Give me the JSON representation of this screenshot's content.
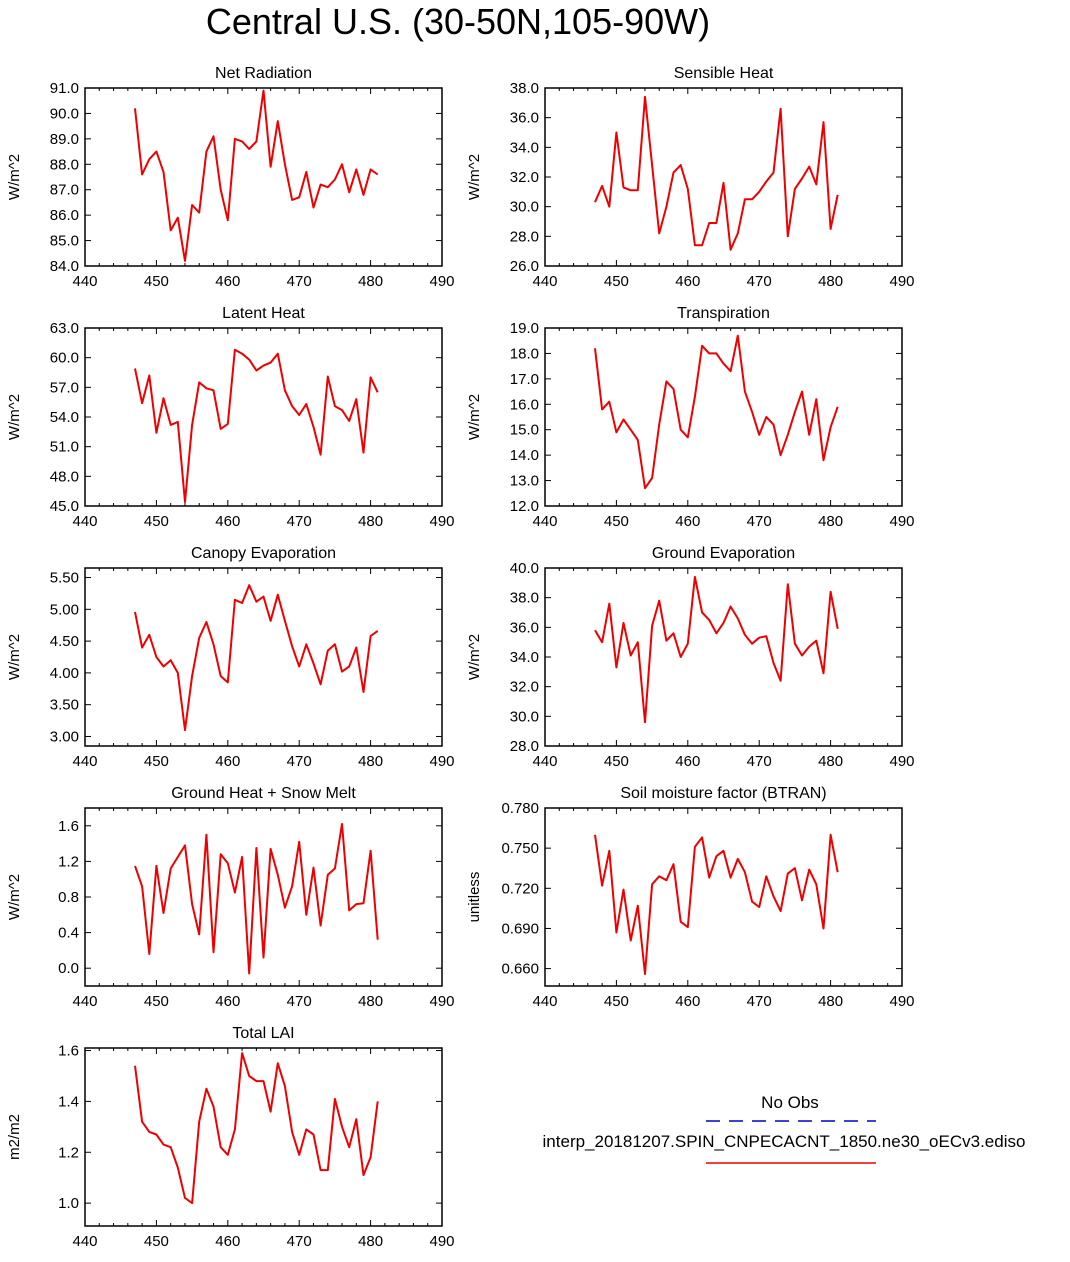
{
  "title": "Central U.S. (30-50N,105-90W)",
  "legend": {
    "obs_label": "No Obs",
    "obs_color": "#0000cc",
    "model_label": "interp_20181207.SPIN_CNPECACNT_1850.ne30_oECv3.ediso",
    "model_color": "#ee0000"
  },
  "chart_data": [
    {
      "type": "line",
      "title": "Net Radiation",
      "ylabel": "W/m^2",
      "xlim": [
        440,
        490
      ],
      "ylim": [
        84,
        91
      ],
      "xticks": [
        440,
        450,
        460,
        470,
        480,
        490
      ],
      "yticks": [
        "84.0",
        "85.0",
        "86.0",
        "87.0",
        "88.0",
        "89.0",
        "90.0",
        "91.0"
      ],
      "x": [
        447,
        448,
        449,
        450,
        451,
        452,
        453,
        454,
        455,
        456,
        457,
        458,
        459,
        460,
        461,
        462,
        463,
        464,
        465,
        466,
        467,
        468,
        469,
        470,
        471,
        472,
        473,
        474,
        475,
        476,
        477,
        478,
        479,
        480,
        481
      ],
      "values": [
        90.2,
        87.6,
        88.2,
        88.5,
        87.7,
        85.4,
        85.9,
        84.2,
        86.4,
        86.1,
        88.5,
        89.1,
        87.0,
        85.8,
        89.0,
        88.9,
        88.6,
        88.9,
        90.9,
        87.9,
        89.7,
        88.0,
        86.6,
        86.7,
        87.7,
        86.3,
        87.2,
        87.1,
        87.4,
        88.0,
        86.9,
        87.8,
        86.8,
        87.8,
        87.6
      ]
    },
    {
      "type": "line",
      "title": "Sensible Heat",
      "ylabel": "W/m^2",
      "xlim": [
        440,
        490
      ],
      "ylim": [
        26,
        38
      ],
      "xticks": [
        440,
        450,
        460,
        470,
        480,
        490
      ],
      "yticks": [
        "26.0",
        "28.0",
        "30.0",
        "32.0",
        "34.0",
        "36.0",
        "38.0"
      ],
      "x": [
        447,
        448,
        449,
        450,
        451,
        452,
        453,
        454,
        455,
        456,
        457,
        458,
        459,
        460,
        461,
        462,
        463,
        464,
        465,
        466,
        467,
        468,
        469,
        470,
        471,
        472,
        473,
        474,
        475,
        476,
        477,
        478,
        479,
        480,
        481
      ],
      "values": [
        30.3,
        31.4,
        30.0,
        35.0,
        31.3,
        31.1,
        31.1,
        37.4,
        32.8,
        28.2,
        30.0,
        32.3,
        32.8,
        31.2,
        27.4,
        27.4,
        28.9,
        28.9,
        31.6,
        27.1,
        28.2,
        30.5,
        30.5,
        31.0,
        31.7,
        32.3,
        36.6,
        28.0,
        31.2,
        31.9,
        32.7,
        31.5,
        35.7,
        28.5,
        30.8
      ]
    },
    {
      "type": "line",
      "title": "Latent Heat",
      "ylabel": "W/m^2",
      "xlim": [
        440,
        490
      ],
      "ylim": [
        45,
        63
      ],
      "xticks": [
        440,
        450,
        460,
        470,
        480,
        490
      ],
      "yticks": [
        "45.0",
        "48.0",
        "51.0",
        "54.0",
        "57.0",
        "60.0",
        "63.0"
      ],
      "x": [
        447,
        448,
        449,
        450,
        451,
        452,
        453,
        454,
        455,
        456,
        457,
        458,
        459,
        460,
        461,
        462,
        463,
        464,
        465,
        466,
        467,
        468,
        469,
        470,
        471,
        472,
        473,
        474,
        475,
        476,
        477,
        478,
        479,
        480,
        481
      ],
      "values": [
        58.9,
        55.4,
        58.2,
        52.4,
        55.9,
        53.2,
        53.5,
        45.4,
        53.2,
        57.5,
        56.9,
        56.7,
        52.8,
        53.3,
        60.8,
        60.4,
        59.8,
        58.7,
        59.2,
        59.5,
        60.4,
        56.7,
        55.1,
        54.2,
        55.3,
        53.0,
        50.2,
        58.1,
        55.1,
        54.7,
        53.6,
        55.8,
        50.4,
        58.0,
        56.5
      ]
    },
    {
      "type": "line",
      "title": "Transpiration",
      "ylabel": "W/m^2",
      "xlim": [
        440,
        490
      ],
      "ylim": [
        12,
        19
      ],
      "xticks": [
        440,
        450,
        460,
        470,
        480,
        490
      ],
      "yticks": [
        "12.0",
        "13.0",
        "14.0",
        "15.0",
        "16.0",
        "17.0",
        "18.0",
        "19.0"
      ],
      "x": [
        447,
        448,
        449,
        450,
        451,
        452,
        453,
        454,
        455,
        456,
        457,
        458,
        459,
        460,
        461,
        462,
        463,
        464,
        465,
        466,
        467,
        468,
        469,
        470,
        471,
        472,
        473,
        474,
        475,
        476,
        477,
        478,
        479,
        480,
        481
      ],
      "values": [
        18.2,
        15.8,
        16.1,
        14.9,
        15.4,
        15.0,
        14.6,
        12.7,
        13.1,
        15.2,
        16.9,
        16.6,
        15.0,
        14.7,
        16.3,
        18.3,
        18.0,
        18.0,
        17.6,
        17.3,
        18.7,
        16.5,
        15.7,
        14.8,
        15.5,
        15.2,
        14.0,
        14.8,
        15.7,
        16.5,
        14.8,
        16.2,
        13.8,
        15.1,
        15.9
      ]
    },
    {
      "type": "line",
      "title": "Canopy Evaporation",
      "ylabel": "W/m^2",
      "xlim": [
        440,
        490
      ],
      "ylim": [
        2.85,
        5.65
      ],
      "xticks": [
        440,
        450,
        460,
        470,
        480,
        490
      ],
      "yticks": [
        "3.00",
        "3.50",
        "4.00",
        "4.50",
        "5.00",
        "5.50"
      ],
      "x": [
        447,
        448,
        449,
        450,
        451,
        452,
        453,
        454,
        455,
        456,
        457,
        458,
        459,
        460,
        461,
        462,
        463,
        464,
        465,
        466,
        467,
        468,
        469,
        470,
        471,
        472,
        473,
        474,
        475,
        476,
        477,
        478,
        479,
        480,
        481
      ],
      "values": [
        4.96,
        4.4,
        4.6,
        4.25,
        4.1,
        4.2,
        4.0,
        3.1,
        3.95,
        4.55,
        4.8,
        4.45,
        3.95,
        3.85,
        5.15,
        5.1,
        5.38,
        5.12,
        5.2,
        4.82,
        5.23,
        4.82,
        4.42,
        4.1,
        4.45,
        4.15,
        3.82,
        4.35,
        4.45,
        4.02,
        4.1,
        4.4,
        3.7,
        4.58,
        4.66
      ]
    },
    {
      "type": "line",
      "title": "Ground Evaporation",
      "ylabel": "W/m^2",
      "xlim": [
        440,
        490
      ],
      "ylim": [
        28,
        40
      ],
      "xticks": [
        440,
        450,
        460,
        470,
        480,
        490
      ],
      "yticks": [
        "28.0",
        "30.0",
        "32.0",
        "34.0",
        "36.0",
        "38.0",
        "40.0"
      ],
      "x": [
        447,
        448,
        449,
        450,
        451,
        452,
        453,
        454,
        455,
        456,
        457,
        458,
        459,
        460,
        461,
        462,
        463,
        464,
        465,
        466,
        467,
        468,
        469,
        470,
        471,
        472,
        473,
        474,
        475,
        476,
        477,
        478,
        479,
        480,
        481
      ],
      "values": [
        35.8,
        35.0,
        37.6,
        33.3,
        36.3,
        34.1,
        35.0,
        29.6,
        36.1,
        37.8,
        35.1,
        35.6,
        34.0,
        34.9,
        39.4,
        37.0,
        36.5,
        35.6,
        36.3,
        37.4,
        36.6,
        35.5,
        34.9,
        35.3,
        35.4,
        33.6,
        32.4,
        38.9,
        34.9,
        34.1,
        34.7,
        35.1,
        32.9,
        38.4,
        35.9
      ]
    },
    {
      "type": "line",
      "title": "Ground Heat + Snow Melt",
      "ylabel": "W/m^2",
      "xlim": [
        440,
        490
      ],
      "ylim": [
        -0.2,
        1.8
      ],
      "xticks": [
        440,
        450,
        460,
        470,
        480,
        490
      ],
      "yticks": [
        "0.0",
        "0.4",
        "0.8",
        "1.2",
        "1.6"
      ],
      "x": [
        447,
        448,
        449,
        450,
        451,
        452,
        453,
        454,
        455,
        456,
        457,
        458,
        459,
        460,
        461,
        462,
        463,
        464,
        465,
        466,
        467,
        468,
        469,
        470,
        471,
        472,
        473,
        474,
        475,
        476,
        477,
        478,
        479,
        480,
        481
      ],
      "values": [
        1.15,
        0.92,
        0.16,
        1.15,
        0.62,
        1.12,
        1.25,
        1.38,
        0.72,
        0.38,
        1.5,
        0.18,
        1.28,
        1.18,
        0.85,
        1.25,
        -0.06,
        1.35,
        0.12,
        1.34,
        1.05,
        0.68,
        0.92,
        1.42,
        0.6,
        1.13,
        0.48,
        1.05,
        1.12,
        1.62,
        0.65,
        0.72,
        0.73,
        1.32,
        0.32
      ]
    },
    {
      "type": "line",
      "title": "Soil moisture factor (BTRAN)",
      "ylabel": "unitless",
      "xlim": [
        440,
        490
      ],
      "ylim": [
        0.647,
        0.78
      ],
      "xticks": [
        440,
        450,
        460,
        470,
        480,
        490
      ],
      "yticks": [
        "0.660",
        "0.690",
        "0.720",
        "0.750",
        "0.780"
      ],
      "x": [
        447,
        448,
        449,
        450,
        451,
        452,
        453,
        454,
        455,
        456,
        457,
        458,
        459,
        460,
        461,
        462,
        463,
        464,
        465,
        466,
        467,
        468,
        469,
        470,
        471,
        472,
        473,
        474,
        475,
        476,
        477,
        478,
        479,
        480,
        481
      ],
      "values": [
        0.76,
        0.722,
        0.748,
        0.687,
        0.719,
        0.681,
        0.707,
        0.656,
        0.723,
        0.729,
        0.726,
        0.738,
        0.695,
        0.691,
        0.751,
        0.758,
        0.728,
        0.744,
        0.748,
        0.728,
        0.742,
        0.732,
        0.71,
        0.706,
        0.729,
        0.714,
        0.703,
        0.731,
        0.735,
        0.711,
        0.734,
        0.723,
        0.69,
        0.76,
        0.732
      ]
    },
    {
      "type": "line",
      "title": "Total LAI",
      "ylabel": "m2/m2",
      "xlim": [
        440,
        490
      ],
      "ylim": [
        0.91,
        1.61
      ],
      "xticks": [
        440,
        450,
        460,
        470,
        480,
        490
      ],
      "yticks": [
        "1.0",
        "1.2",
        "1.4",
        "1.6"
      ],
      "x": [
        447,
        448,
        449,
        450,
        451,
        452,
        453,
        454,
        455,
        456,
        457,
        458,
        459,
        460,
        461,
        462,
        463,
        464,
        465,
        466,
        467,
        468,
        469,
        470,
        471,
        472,
        473,
        474,
        475,
        476,
        477,
        478,
        479,
        480,
        481
      ],
      "values": [
        1.54,
        1.32,
        1.28,
        1.27,
        1.23,
        1.22,
        1.14,
        1.02,
        1.0,
        1.32,
        1.45,
        1.38,
        1.22,
        1.19,
        1.29,
        1.59,
        1.5,
        1.48,
        1.48,
        1.36,
        1.55,
        1.46,
        1.28,
        1.19,
        1.29,
        1.27,
        1.13,
        1.13,
        1.41,
        1.3,
        1.22,
        1.33,
        1.11,
        1.18,
        1.4
      ]
    }
  ]
}
